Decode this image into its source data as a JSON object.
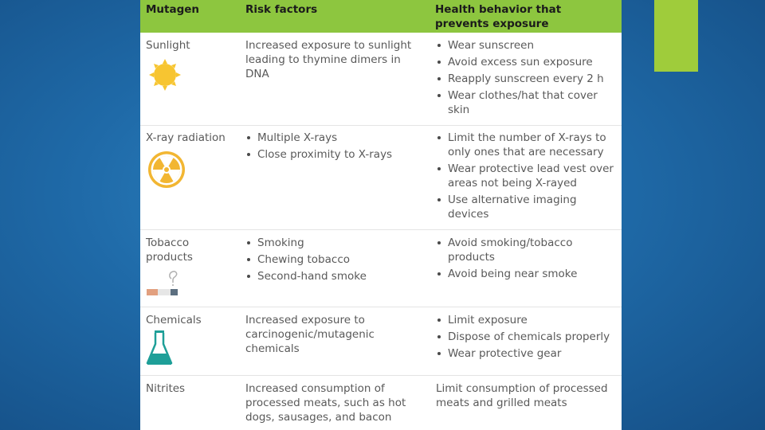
{
  "header": {
    "mutagen": "Mutagen",
    "risk": "Risk factors",
    "behavior": "Health behavior that prevents exposure"
  },
  "rows": [
    {
      "mutagen": "Sunlight",
      "icon": "sun-icon",
      "risk_text": "Increased exposure to sunlight leading to thymine dimers in DNA",
      "behaviors": [
        "Wear sunscreen",
        "Avoid excess sun exposure",
        "Reapply sunscreen every 2 h",
        "Wear clothes/hat that cover skin"
      ]
    },
    {
      "mutagen": "X-ray radiation",
      "icon": "radiation-icon",
      "risks": [
        "Multiple X-rays",
        "Close proximity to X-rays"
      ],
      "behaviors": [
        "Limit the number of X-rays to only ones that are necessary",
        "Wear protective lead vest over areas not being X-rayed",
        "Use alternative imaging devices"
      ]
    },
    {
      "mutagen": "Tobacco products",
      "icon": "cigarette-icon",
      "risks": [
        "Smoking",
        "Chewing tobacco",
        "Second-hand smoke"
      ],
      "behaviors": [
        "Avoid smoking/tobacco products",
        "Avoid being near smoke"
      ]
    },
    {
      "mutagen": "Chemicals",
      "icon": "flask-icon",
      "risk_text": "Increased exposure to carcinogenic/mutagenic chemicals",
      "behaviors": [
        "Limit exposure",
        "Dispose of chemicals properly",
        "Wear protective gear"
      ]
    },
    {
      "mutagen": "Nitrites",
      "risk_text": "Increased consumption of processed meats, such as hot dogs, sausages, and bacon",
      "behavior_text": "Limit consumption of processed meats and grilled meats"
    }
  ],
  "colors": {
    "header_bg": "#8dc63f",
    "accent_bar": "#9fcc3b",
    "sun": "#f7c531",
    "radiation": "#f2b632",
    "flask": "#1e9f98"
  }
}
